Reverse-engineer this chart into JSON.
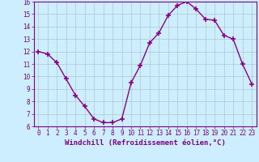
{
  "x": [
    0,
    1,
    2,
    3,
    4,
    5,
    6,
    7,
    8,
    9,
    10,
    11,
    12,
    13,
    14,
    15,
    16,
    17,
    18,
    19,
    20,
    21,
    22,
    23
  ],
  "y": [
    12.0,
    11.8,
    11.1,
    9.8,
    8.5,
    7.6,
    6.6,
    6.3,
    6.3,
    6.6,
    9.5,
    10.9,
    12.7,
    13.5,
    14.9,
    15.7,
    16.0,
    15.4,
    14.6,
    14.5,
    13.3,
    13.0,
    11.0,
    9.4
  ],
  "line_color": "#8B008B",
  "marker": "+",
  "marker_size": 4,
  "linewidth": 1.0,
  "xlabel": "Windchill (Refroidissement éolien,°C)",
  "xlabel_fontsize": 6.5,
  "xlim": [
    -0.5,
    23.5
  ],
  "ylim": [
    6,
    16
  ],
  "yticks": [
    6,
    7,
    8,
    9,
    10,
    11,
    12,
    13,
    14,
    15,
    16
  ],
  "xticks": [
    0,
    1,
    2,
    3,
    4,
    5,
    6,
    7,
    8,
    9,
    10,
    11,
    12,
    13,
    14,
    15,
    16,
    17,
    18,
    19,
    20,
    21,
    22,
    23
  ],
  "tick_fontsize": 5.5,
  "background_color": "#cceeff",
  "grid_color": "#b0c8c8",
  "axes_color": "#800080",
  "fig_width": 3.2,
  "fig_height": 2.0,
  "dpi": 100
}
